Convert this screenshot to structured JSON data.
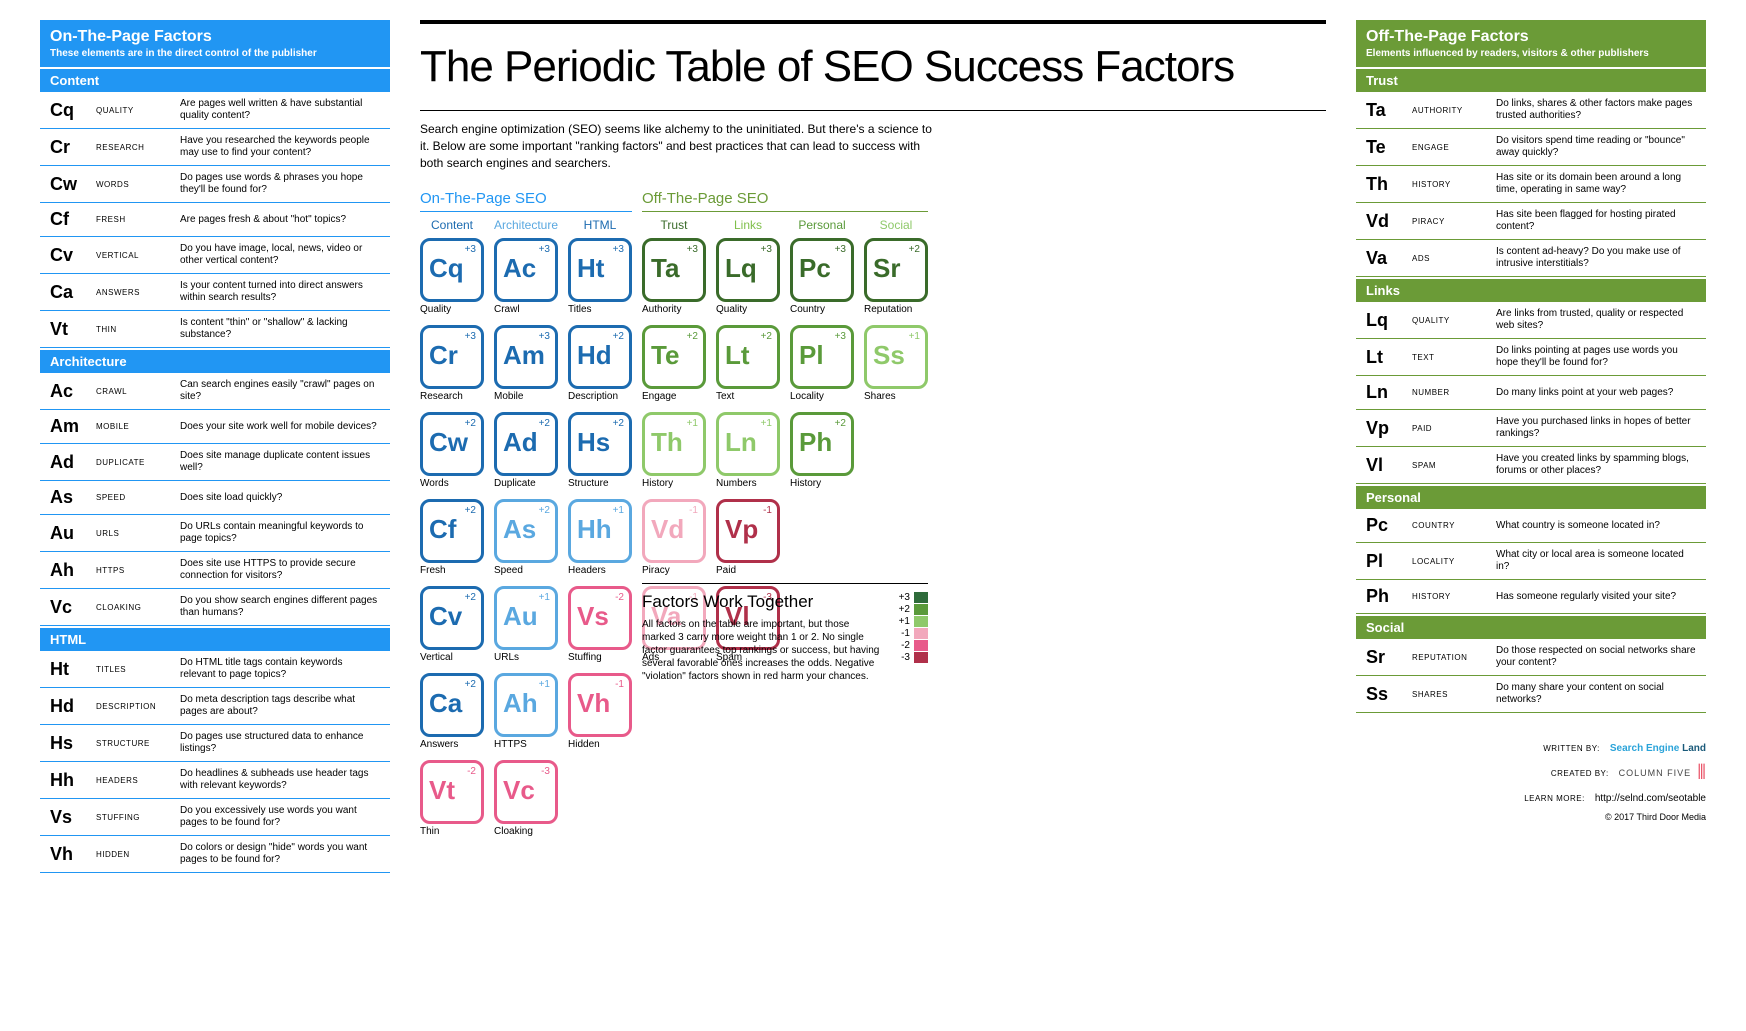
{
  "title": "The Periodic Table of SEO Success Factors",
  "intro": "Search engine optimization (SEO) seems like alchemy to the uninitiated. But there's a science to it. Below are some important \"ranking factors\" and best practices that can lead to success with both search engines and searchers.",
  "cell_size": 64,
  "cell_gap": 10,
  "colors": {
    "on_page_blue": "#2196f3",
    "off_page_green": "#6b9b37",
    "content": "#1c6bb0",
    "architecture": "#5aa8e0",
    "html": "#e94f8a",
    "trust": "#3a6b2a",
    "links": "#7fbf4a",
    "personal": "#5a9a3a",
    "social": "#8fc96a",
    "violation_pink": "#e85a8a",
    "violation_red": "#b0304a",
    "legend": {
      "+3": "#2e6b3a",
      "+2": "#5a9a3a",
      "+1": "#8fc96a",
      "-1": "#f2a8bc",
      "-2": "#e85a8a",
      "-3": "#b0304a"
    }
  },
  "left_panel": {
    "title": "On-The-Page Factors",
    "subtitle": "These elements are in the direct control of the publisher",
    "sections": [
      {
        "name": "Content",
        "items": [
          {
            "sym": "Cq",
            "name": "QUALITY",
            "desc": "Are pages well written & have substantial quality content?"
          },
          {
            "sym": "Cr",
            "name": "RESEARCH",
            "desc": "Have you researched the keywords people may use to find your content?"
          },
          {
            "sym": "Cw",
            "name": "WORDS",
            "desc": "Do pages use words & phrases you hope they'll be found for?"
          },
          {
            "sym": "Cf",
            "name": "FRESH",
            "desc": "Are pages fresh & about \"hot\" topics?"
          },
          {
            "sym": "Cv",
            "name": "VERTICAL",
            "desc": "Do you have image, local, news, video or other vertical content?"
          },
          {
            "sym": "Ca",
            "name": "ANSWERS",
            "desc": "Is your content turned into direct answers within search results?"
          },
          {
            "sym": "Vt",
            "name": "THIN",
            "desc": "Is content \"thin\" or \"shallow\" & lacking substance?"
          }
        ]
      },
      {
        "name": "Architecture",
        "items": [
          {
            "sym": "Ac",
            "name": "CRAWL",
            "desc": "Can search engines easily \"crawl\" pages on site?"
          },
          {
            "sym": "Am",
            "name": "MOBILE",
            "desc": "Does your site work well for mobile devices?"
          },
          {
            "sym": "Ad",
            "name": "DUPLICATE",
            "desc": "Does site manage duplicate content issues well?"
          },
          {
            "sym": "As",
            "name": "SPEED",
            "desc": "Does site load quickly?"
          },
          {
            "sym": "Au",
            "name": "URLS",
            "desc": "Do URLs contain meaningful keywords to page topics?"
          },
          {
            "sym": "Ah",
            "name": "HTTPS",
            "desc": "Does site use HTTPS to provide secure connection for visitors?"
          },
          {
            "sym": "Vc",
            "name": "CLOAKING",
            "desc": "Do you show search engines different pages than humans?"
          }
        ]
      },
      {
        "name": "HTML",
        "items": [
          {
            "sym": "Ht",
            "name": "TITLES",
            "desc": "Do HTML title tags contain keywords relevant to page topics?"
          },
          {
            "sym": "Hd",
            "name": "DESCRIPTION",
            "desc": "Do meta description tags describe what pages are about?"
          },
          {
            "sym": "Hs",
            "name": "STRUCTURE",
            "desc": "Do pages use structured data to enhance listings?"
          },
          {
            "sym": "Hh",
            "name": "HEADERS",
            "desc": "Do headlines & subheads use header tags with relevant keywords?"
          },
          {
            "sym": "Vs",
            "name": "STUFFING",
            "desc": "Do you excessively use words you want pages to be found for?"
          },
          {
            "sym": "Vh",
            "name": "HIDDEN",
            "desc": "Do colors or design \"hide\" words you want pages to be found for?"
          }
        ]
      }
    ]
  },
  "right_panel": {
    "title": "Off-The-Page Factors",
    "subtitle": "Elements influenced by readers, visitors & other publishers",
    "sections": [
      {
        "name": "Trust",
        "items": [
          {
            "sym": "Ta",
            "name": "AUTHORITY",
            "desc": "Do links, shares & other factors make pages trusted authorities?"
          },
          {
            "sym": "Te",
            "name": "ENGAGE",
            "desc": "Do visitors spend time reading or \"bounce\" away quickly?"
          },
          {
            "sym": "Th",
            "name": "HISTORY",
            "desc": "Has site or its domain been around a long time, operating in same way?"
          },
          {
            "sym": "Vd",
            "name": "PIRACY",
            "desc": "Has site been flagged for hosting pirated content?"
          },
          {
            "sym": "Va",
            "name": "ADS",
            "desc": "Is content ad-heavy? Do you make use of intrusive interstitials?"
          }
        ]
      },
      {
        "name": "Links",
        "items": [
          {
            "sym": "Lq",
            "name": "QUALITY",
            "desc": "Are links from trusted, quality or respected web sites?"
          },
          {
            "sym": "Lt",
            "name": "TEXT",
            "desc": "Do links pointing at pages use words you hope they'll be found for?"
          },
          {
            "sym": "Ln",
            "name": "NUMBER",
            "desc": "Do many links point at your web pages?"
          },
          {
            "sym": "Vp",
            "name": "PAID",
            "desc": "Have you purchased links in hopes of better rankings?"
          },
          {
            "sym": "Vl",
            "name": "SPAM",
            "desc": "Have you created links by spamming blogs, forums or other places?"
          }
        ]
      },
      {
        "name": "Personal",
        "items": [
          {
            "sym": "Pc",
            "name": "COUNTRY",
            "desc": "What country is someone located in?"
          },
          {
            "sym": "Pl",
            "name": "LOCALITY",
            "desc": "What city or local area is someone located in?"
          },
          {
            "sym": "Ph",
            "name": "HISTORY",
            "desc": "Has someone regularly visited your site?"
          }
        ]
      },
      {
        "name": "Social",
        "items": [
          {
            "sym": "Sr",
            "name": "REPUTATION",
            "desc": "Do those respected on social networks share your content?"
          },
          {
            "sym": "Ss",
            "name": "SHARES",
            "desc": "Do many share your content on social networks?"
          }
        ]
      }
    ]
  },
  "groups": {
    "on": {
      "label": "On-The-Page SEO",
      "color": "#2196f3",
      "span": 3
    },
    "off": {
      "label": "Off-The-Page SEO",
      "color": "#6b9b37",
      "span": 4
    }
  },
  "columns": [
    {
      "label": "Content",
      "color": "#1c6bb0"
    },
    {
      "label": "Architecture",
      "color": "#5aa8e0"
    },
    {
      "label": "HTML",
      "color": "#1c6bb0"
    },
    {
      "label": "Trust",
      "color": "#3a6b2a"
    },
    {
      "label": "Links",
      "color": "#7fbf4a"
    },
    {
      "label": "Personal",
      "color": "#5a9a3a"
    },
    {
      "label": "Social",
      "color": "#8fc96a"
    }
  ],
  "grid": [
    [
      {
        "sym": "Cq",
        "label": "Quality",
        "w": "+3",
        "color": "#1c6bb0"
      },
      {
        "sym": "Ac",
        "label": "Crawl",
        "w": "+3",
        "color": "#1c6bb0"
      },
      {
        "sym": "Ht",
        "label": "Titles",
        "w": "+3",
        "color": "#1c6bb0"
      },
      {
        "sym": "Ta",
        "label": "Authority",
        "w": "+3",
        "color": "#3a6b2a"
      },
      {
        "sym": "Lq",
        "label": "Quality",
        "w": "+3",
        "color": "#3a6b2a"
      },
      {
        "sym": "Pc",
        "label": "Country",
        "w": "+3",
        "color": "#3a6b2a"
      },
      {
        "sym": "Sr",
        "label": "Reputation",
        "w": "+2",
        "color": "#3a6b2a"
      }
    ],
    [
      {
        "sym": "Cr",
        "label": "Research",
        "w": "+3",
        "color": "#1c6bb0"
      },
      {
        "sym": "Am",
        "label": "Mobile",
        "w": "+3",
        "color": "#1c6bb0"
      },
      {
        "sym": "Hd",
        "label": "Description",
        "w": "+2",
        "color": "#1c6bb0"
      },
      {
        "sym": "Te",
        "label": "Engage",
        "w": "+2",
        "color": "#5a9a3a"
      },
      {
        "sym": "Lt",
        "label": "Text",
        "w": "+2",
        "color": "#5a9a3a"
      },
      {
        "sym": "Pl",
        "label": "Locality",
        "w": "+3",
        "color": "#5a9a3a"
      },
      {
        "sym": "Ss",
        "label": "Shares",
        "w": "+1",
        "color": "#8fc96a"
      }
    ],
    [
      {
        "sym": "Cw",
        "label": "Words",
        "w": "+2",
        "color": "#1c6bb0"
      },
      {
        "sym": "Ad",
        "label": "Duplicate",
        "w": "+2",
        "color": "#1c6bb0"
      },
      {
        "sym": "Hs",
        "label": "Structure",
        "w": "+2",
        "color": "#1c6bb0"
      },
      {
        "sym": "Th",
        "label": "History",
        "w": "+1",
        "color": "#8fc96a"
      },
      {
        "sym": "Ln",
        "label": "Numbers",
        "w": "+1",
        "color": "#8fc96a"
      },
      {
        "sym": "Ph",
        "label": "History",
        "w": "+2",
        "color": "#5a9a3a"
      },
      null
    ],
    [
      {
        "sym": "Cf",
        "label": "Fresh",
        "w": "+2",
        "color": "#1c6bb0"
      },
      {
        "sym": "As",
        "label": "Speed",
        "w": "+2",
        "color": "#5aa8e0"
      },
      {
        "sym": "Hh",
        "label": "Headers",
        "w": "+1",
        "color": "#5aa8e0"
      },
      {
        "sym": "Vd",
        "label": "Piracy",
        "w": "-1",
        "color": "#f2a8bc"
      },
      {
        "sym": "Vp",
        "label": "Paid",
        "w": "-1",
        "color": "#b0304a"
      },
      null,
      null
    ],
    [
      {
        "sym": "Cv",
        "label": "Vertical",
        "w": "+2",
        "color": "#1c6bb0"
      },
      {
        "sym": "Au",
        "label": "URLs",
        "w": "+1",
        "color": "#5aa8e0"
      },
      {
        "sym": "Vs",
        "label": "Stuffing",
        "w": "-2",
        "color": "#e85a8a"
      },
      {
        "sym": "Va",
        "label": "Ads",
        "w": "-1",
        "color": "#f2a8bc"
      },
      {
        "sym": "Vl",
        "label": "Spam",
        "w": "-3",
        "color": "#b0304a"
      },
      null,
      null
    ],
    [
      {
        "sym": "Ca",
        "label": "Answers",
        "w": "+2",
        "color": "#1c6bb0"
      },
      {
        "sym": "Ah",
        "label": "HTTPS",
        "w": "+1",
        "color": "#5aa8e0"
      },
      {
        "sym": "Vh",
        "label": "Hidden",
        "w": "-1",
        "color": "#e85a8a"
      },
      null,
      null,
      null,
      null
    ],
    [
      {
        "sym": "Vt",
        "label": "Thin",
        "w": "-2",
        "color": "#e85a8a"
      },
      {
        "sym": "Vc",
        "label": "Cloaking",
        "w": "-3",
        "color": "#e85a8a"
      },
      null,
      null,
      null,
      null,
      null
    ]
  ],
  "factors_box": {
    "title": "Factors Work Together",
    "text": "All factors on the table are important, but those marked 3 carry more weight than 1 or 2. No single factor guarantees top rankings or success, but having several favorable ones increases the odds. Negative \"violation\" factors shown in red harm your chances.",
    "legend": [
      {
        "v": "+3",
        "c": "#2e6b3a"
      },
      {
        "v": "+2",
        "c": "#5a9a3a"
      },
      {
        "v": "+1",
        "c": "#8fc96a"
      },
      {
        "v": "-1",
        "c": "#f2a8bc"
      },
      {
        "v": "-2",
        "c": "#e85a8a"
      },
      {
        "v": "-3",
        "c": "#b0304a"
      }
    ]
  },
  "credits": {
    "written_by_label": "WRITTEN BY:",
    "written_by": "Search Engine Land",
    "created_by_label": "CREATED BY:",
    "created_by": "COLUMN FIVE",
    "learn_label": "LEARN MORE:",
    "learn_url": "http://selnd.com/seotable",
    "copyright": "© 2017 Third Door Media"
  }
}
